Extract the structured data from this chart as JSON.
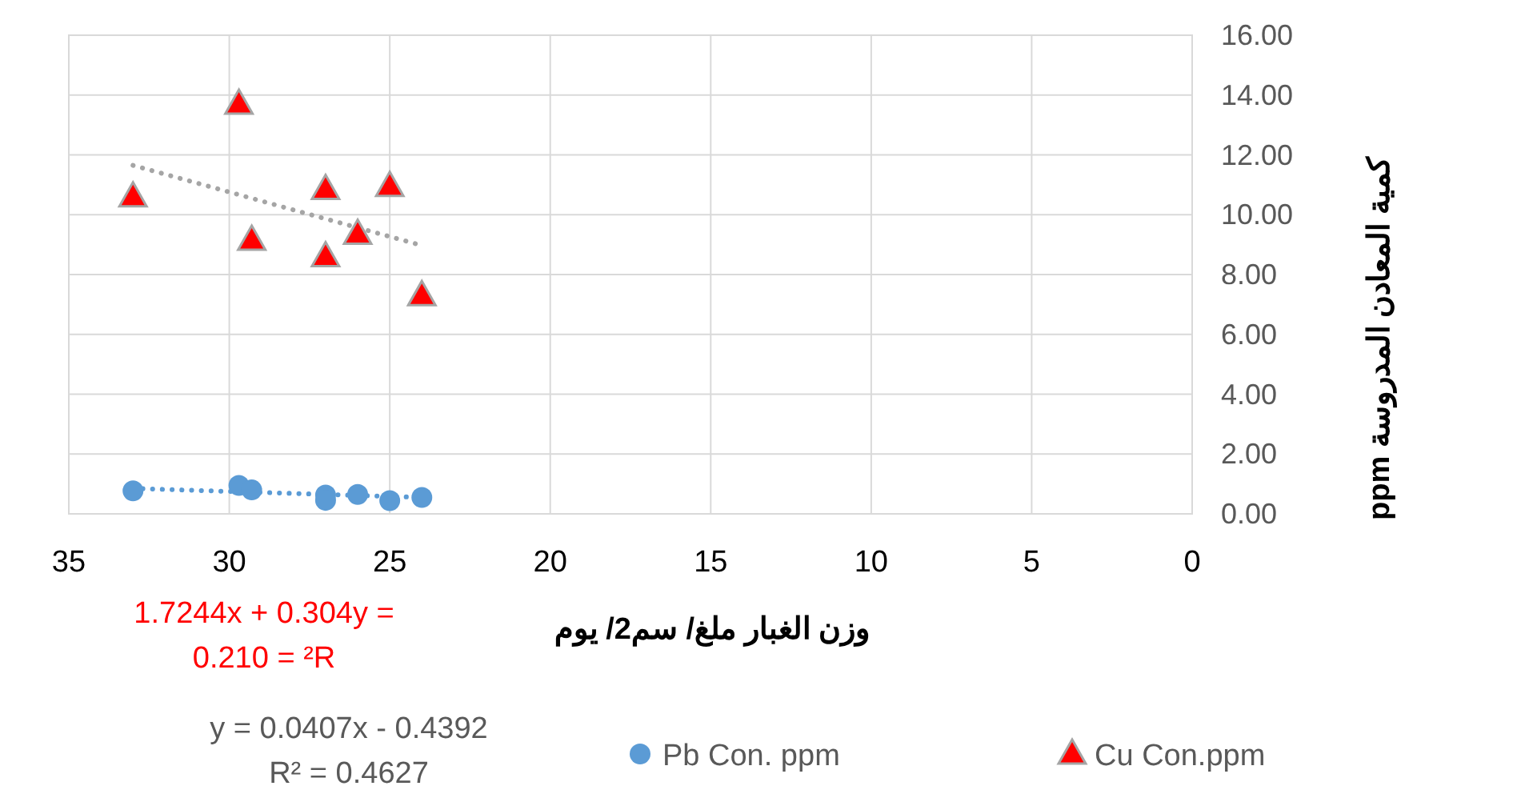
{
  "chart_data": {
    "type": "scatter",
    "xlabel": "وزن الغبار ملغ/ سم2/ يوم",
    "ylabel": "كمية المعادن المدروسة ppm",
    "xlim": [
      35,
      0
    ],
    "xticks": [
      35,
      30,
      25,
      20,
      15,
      10,
      5,
      0
    ],
    "ylim": [
      0,
      16
    ],
    "yticks": [
      {
        "value": 0,
        "label": "0.00"
      },
      {
        "value": 2,
        "label": "2.00"
      },
      {
        "value": 4,
        "label": "4.00"
      },
      {
        "value": 6,
        "label": "6.00"
      },
      {
        "value": 8,
        "label": "8.00"
      },
      {
        "value": 10,
        "label": "10.00"
      },
      {
        "value": 12,
        "label": "12.00"
      },
      {
        "value": 14,
        "label": "14.00"
      },
      {
        "value": 16,
        "label": "16.00"
      }
    ],
    "grid": true,
    "legend": "bottom",
    "series": [
      {
        "name": "Pb Con. ppm",
        "type": "scatter",
        "marker": "circle",
        "color": "#5b9bd5",
        "x": [
          33,
          29.7,
          29.3,
          27,
          27,
          26,
          25,
          24
        ],
        "values": [
          0.77,
          0.95,
          0.8,
          0.63,
          0.45,
          0.65,
          0.44,
          0.55
        ]
      },
      {
        "name": "Cu Con.ppm",
        "type": "scatter",
        "marker": "triangle",
        "color": "#ff0000",
        "x": [
          33,
          29.7,
          29.3,
          27,
          27,
          26,
          25,
          24
        ],
        "values": [
          10.6,
          13.7,
          9.15,
          10.85,
          8.6,
          9.35,
          10.95,
          7.3
        ]
      },
      {
        "type": "line",
        "marker": "none",
        "line_style": "dotted",
        "color": "#5b9bd5",
        "x": [
          33,
          24
        ],
        "values": [
          0.85,
          0.55
        ]
      },
      {
        "type": "line",
        "marker": "none",
        "line_style": "dotted",
        "color": "#a5a5a5",
        "x": [
          33,
          24
        ],
        "values": [
          11.65,
          8.97
        ]
      }
    ],
    "annotations": [
      "1.7244x + 0.304y =\n0.210 = ²R",
      "y = 0.0407x - 0.4392\nR² = 0.4627"
    ]
  }
}
